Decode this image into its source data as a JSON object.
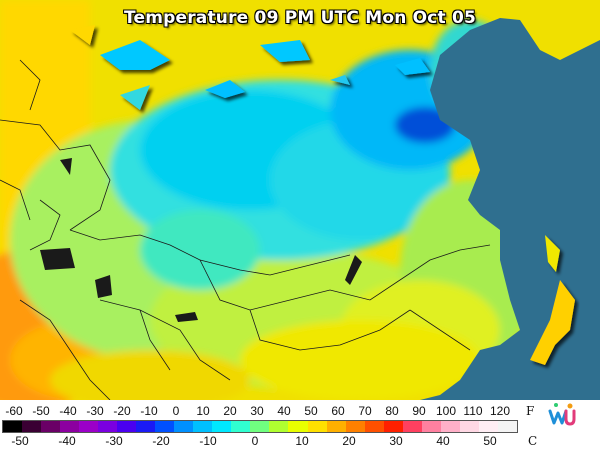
{
  "map": {
    "title": "Temperature 09 PM UTC Mon Oct 05",
    "colors": {
      "ocean": "#2f6f8f",
      "land_lines": "#1a1a1a"
    }
  },
  "legend": {
    "f_unit": "F",
    "c_unit": "C",
    "f_ticks": [
      "-60",
      "-50",
      "-40",
      "-30",
      "-20",
      "-10",
      "0",
      "10",
      "20",
      "30",
      "40",
      "50",
      "60",
      "70",
      "80",
      "90",
      "100",
      "110",
      "120"
    ],
    "c_ticks": [
      "-50",
      "-40",
      "-30",
      "-20",
      "-10",
      "0",
      "10",
      "20",
      "30",
      "40",
      "50"
    ],
    "colorbar": [
      "#000000",
      "#3a0033",
      "#6a0066",
      "#8c00a0",
      "#9b00c8",
      "#7a00e0",
      "#4a00f0",
      "#1a1af5",
      "#0050ff",
      "#0090ff",
      "#00c0ff",
      "#00e8ff",
      "#30ffd0",
      "#70ff80",
      "#b0ff30",
      "#e8ff00",
      "#ffe000",
      "#ffb000",
      "#ff8000",
      "#ff5000",
      "#ff2000",
      "#ff4060",
      "#ff80a0",
      "#ffb0c8",
      "#ffd8e4",
      "#ffeef4",
      "#f4f4f4"
    ]
  },
  "logo": {
    "icon": "wu-logo-icon"
  }
}
